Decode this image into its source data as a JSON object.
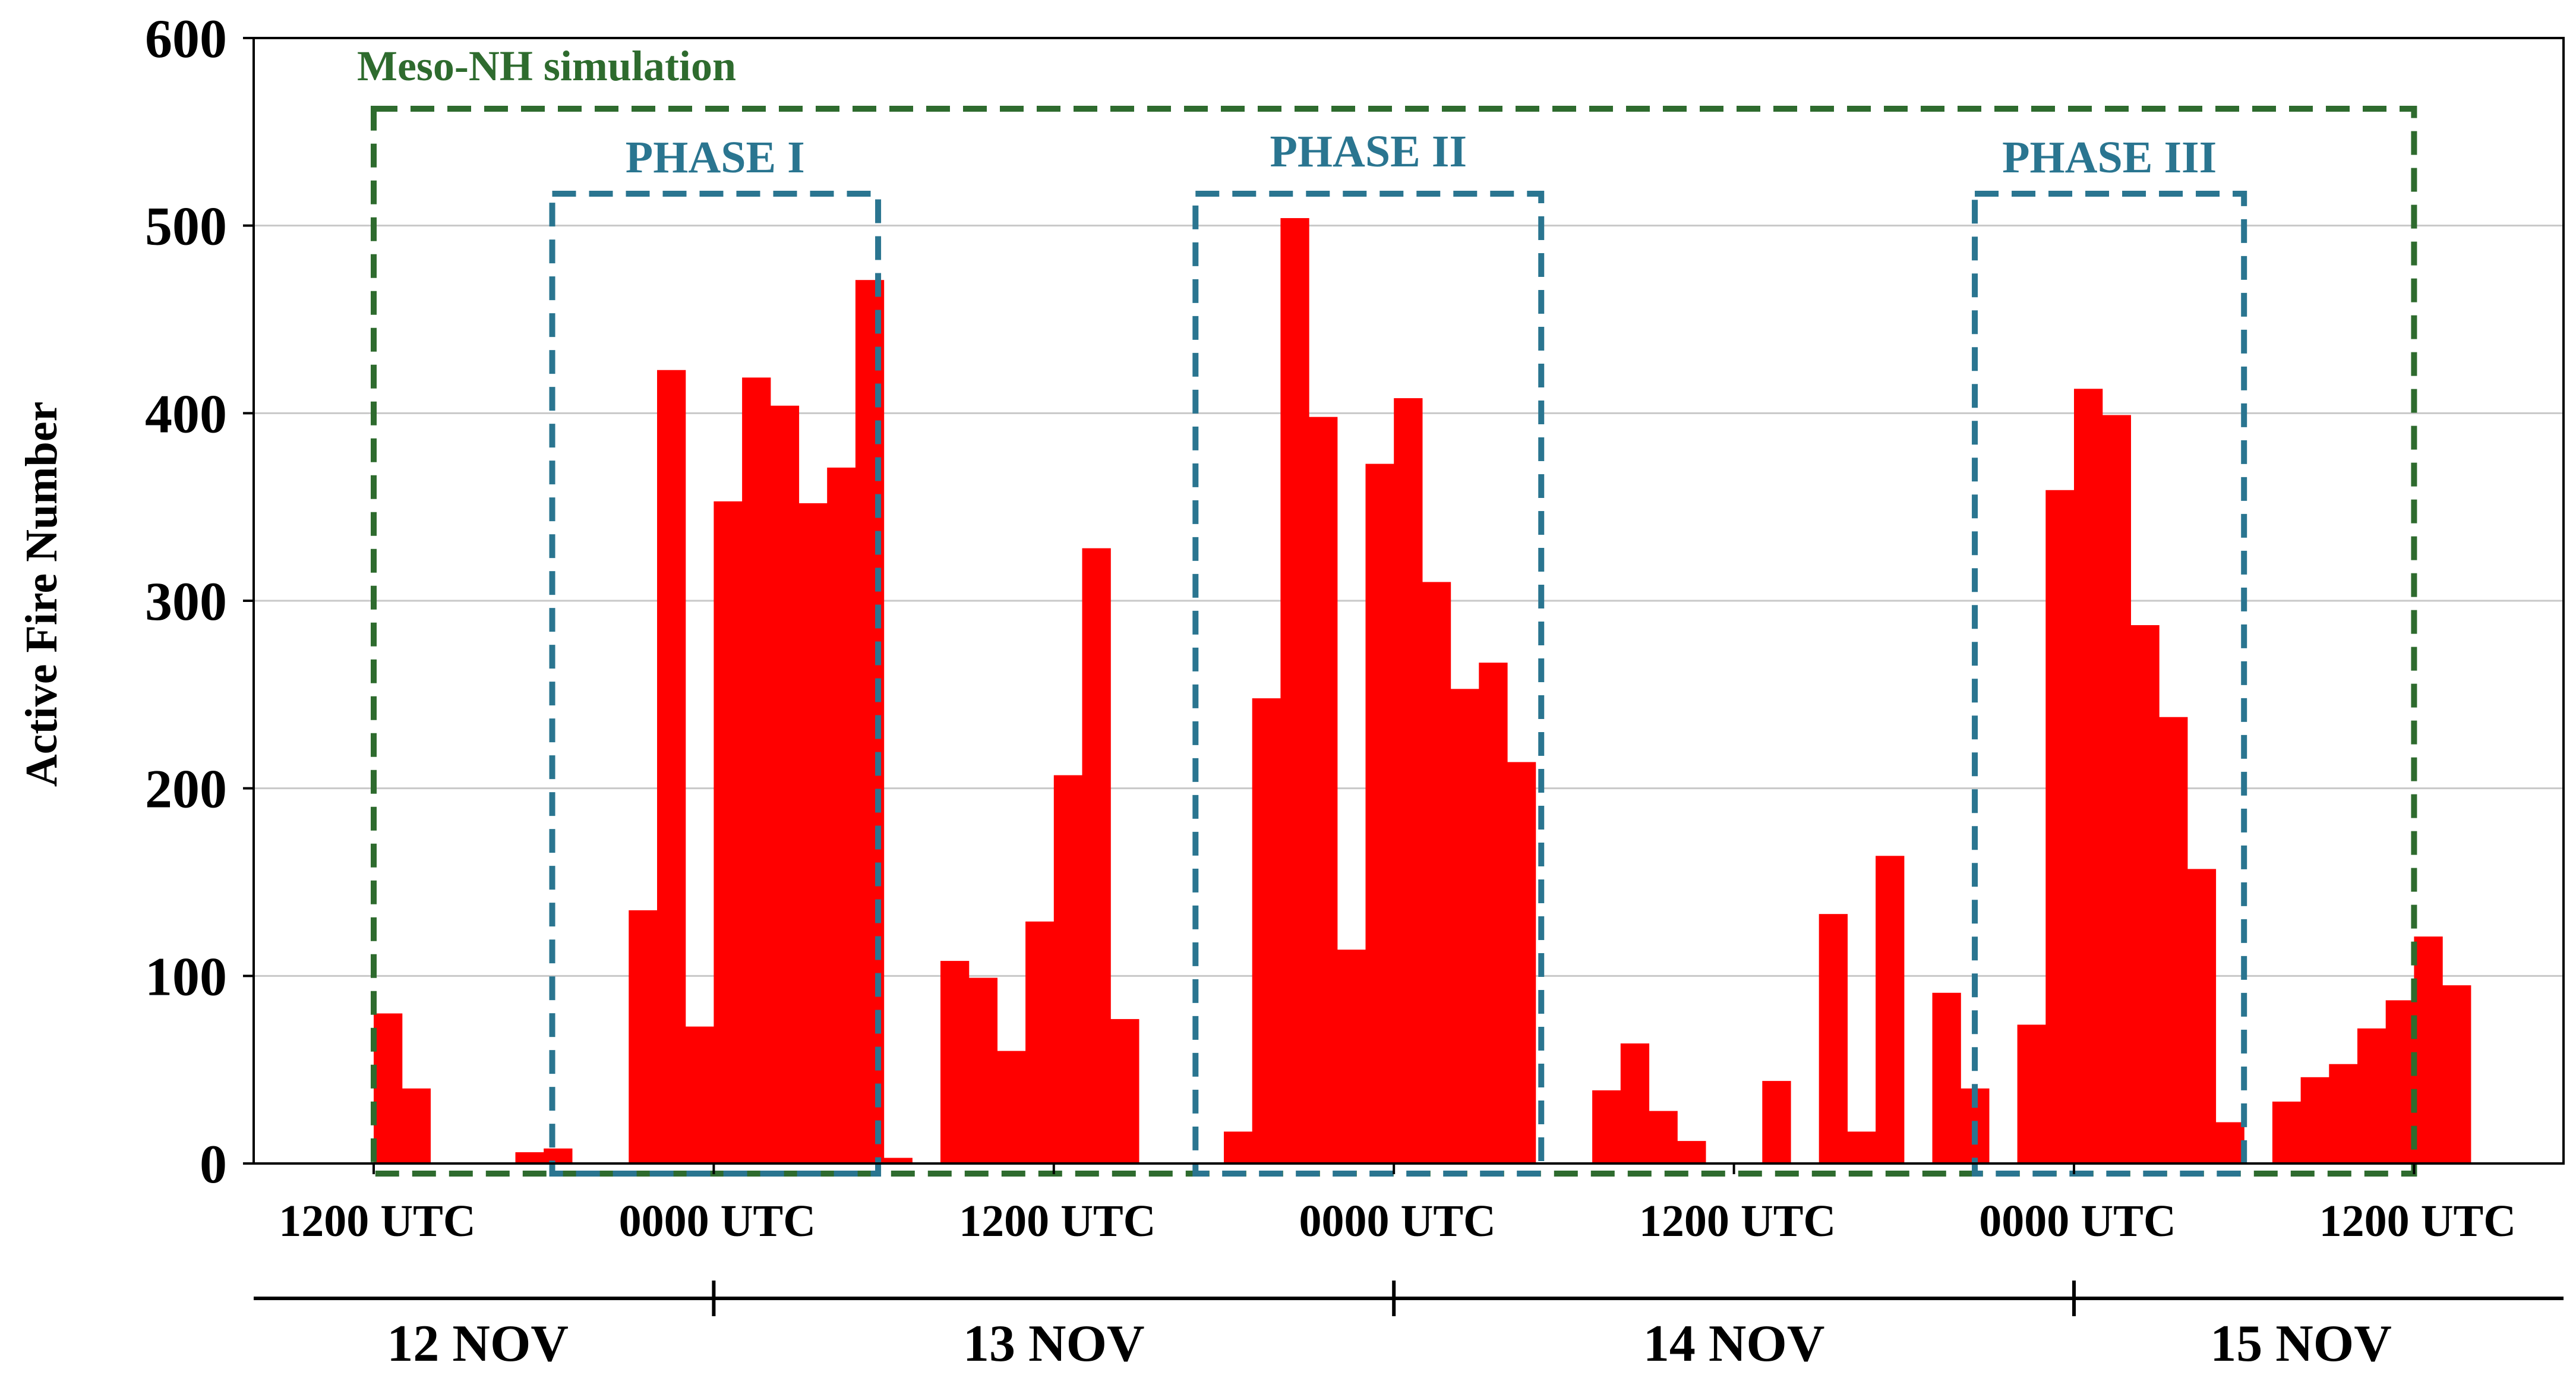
{
  "chart_data": {
    "type": "bar",
    "ylabel": "Active Fire Number",
    "ylim": [
      0,
      600
    ],
    "yticks": [
      0,
      100,
      200,
      300,
      400,
      500,
      600
    ],
    "grid": "horizontal",
    "xticks": [
      "1200 UTC",
      "0000 UTC",
      "1200 UTC",
      "0000 UTC",
      "1200 UTC",
      "0000 UTC",
      "1200 UTC"
    ],
    "days": [
      "12 NOV",
      "13 NOV",
      "14 NOV",
      "15 NOV"
    ],
    "bar_color": "#ff0000",
    "bin_hours": 1,
    "start": "12 NOV 1200 UTC",
    "values": [
      80,
      40,
      0,
      0,
      0,
      6,
      8,
      0,
      0,
      135,
      423,
      73,
      353,
      419,
      404,
      352,
      371,
      471,
      3,
      0,
      108,
      99,
      60,
      129,
      207,
      328,
      77,
      0,
      0,
      0,
      17,
      248,
      504,
      398,
      114,
      373,
      408,
      310,
      253,
      267,
      214,
      0,
      0,
      39,
      64,
      28,
      12,
      0,
      0,
      44,
      0,
      133,
      17,
      164,
      0,
      91,
      40,
      0,
      74,
      359,
      413,
      399,
      287,
      238,
      157,
      22,
      0,
      33,
      46,
      53,
      72,
      87,
      121,
      95
    ],
    "annotations": [
      {
        "label": "Meso-NH simulation",
        "color": "#2e6b2e",
        "from_hour": 0,
        "to_hour": 72
      },
      {
        "label": "PHASE I",
        "color": "#2a7590",
        "from_hour": 6.3,
        "to_hour": 17.8
      },
      {
        "label": "PHASE II",
        "color": "#2a7590",
        "from_hour": 29,
        "to_hour": 41.2
      },
      {
        "label": "PHASE III",
        "color": "#2a7590",
        "from_hour": 56.5,
        "to_hour": 66
      }
    ]
  }
}
